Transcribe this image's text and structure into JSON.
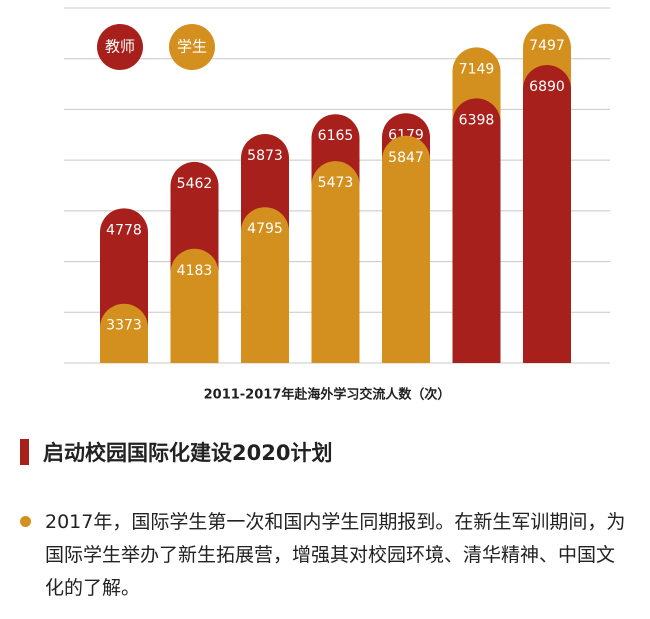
{
  "chart_data": {
    "type": "bar",
    "title": "2011-2017年赴海外学习交流人数（次）",
    "categories": [
      null,
      null,
      null,
      null,
      null,
      null,
      null
    ],
    "series": [
      {
        "name": "教师",
        "color": "#a8201c",
        "values": [
          4778,
          5462,
          5873,
          6165,
          6179,
          6398,
          6890
        ]
      },
      {
        "name": "学生",
        "color": "#d4901e",
        "values": [
          3373,
          4183,
          4795,
          5473,
          5847,
          7149,
          7497
        ]
      }
    ],
    "ylim": [
      2500,
      7700
    ],
    "grid": true
  },
  "section": {
    "heading": "启动校园国际化建设2020计划",
    "bullets": [
      "2017年，国际学生第一次和国内学生同期报到。在新生军训期间，为国际学生举办了新生拓展营，增强其对校园环境、清华精神、中国文化的了解。"
    ]
  }
}
